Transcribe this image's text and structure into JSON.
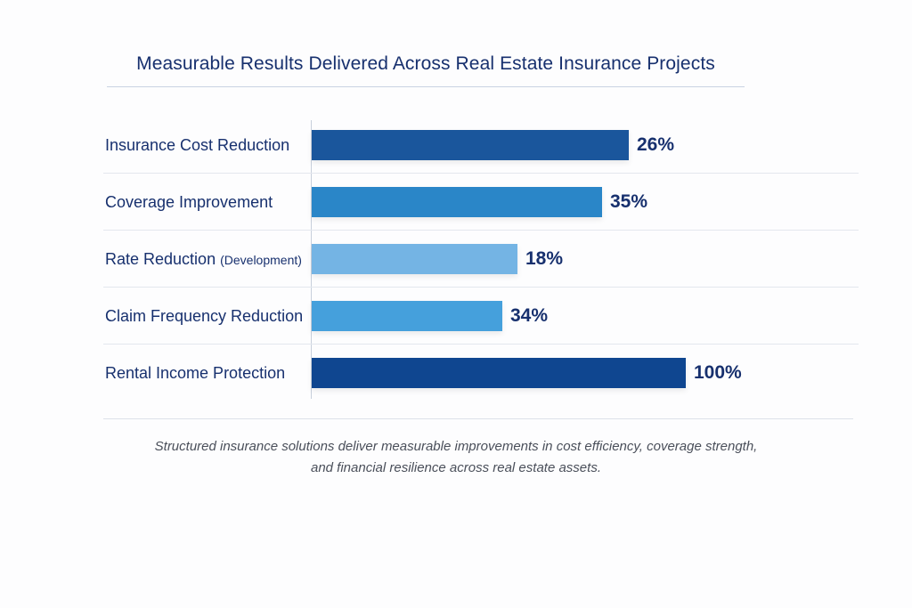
{
  "chart_data": {
    "type": "bar",
    "orientation": "horizontal",
    "title": "Measurable Results Delivered Across Real Estate Insurance Projects",
    "categories": [
      "Insurance Cost Reduction",
      "Coverage Improvement",
      "Rate Reduction",
      "Claim Frequency Reduction",
      "Rental Income Protection"
    ],
    "category_notes": [
      "",
      "",
      "(Development)",
      "",
      ""
    ],
    "values": [
      26,
      35,
      18,
      34,
      100
    ],
    "value_labels": [
      "26%",
      "35%",
      "18%",
      "34%",
      "100%"
    ],
    "colors": [
      "#1a569c",
      "#2a86c8",
      "#74b4e4",
      "#45a0dc",
      "#0f4690"
    ],
    "xlabel": "",
    "ylabel": "",
    "grid": false,
    "footnote_lines": [
      "Structured insurance solutions deliver measurable improvements in cost efficiency, coverage strength,",
      "and financial resilience across real estate assets."
    ]
  }
}
